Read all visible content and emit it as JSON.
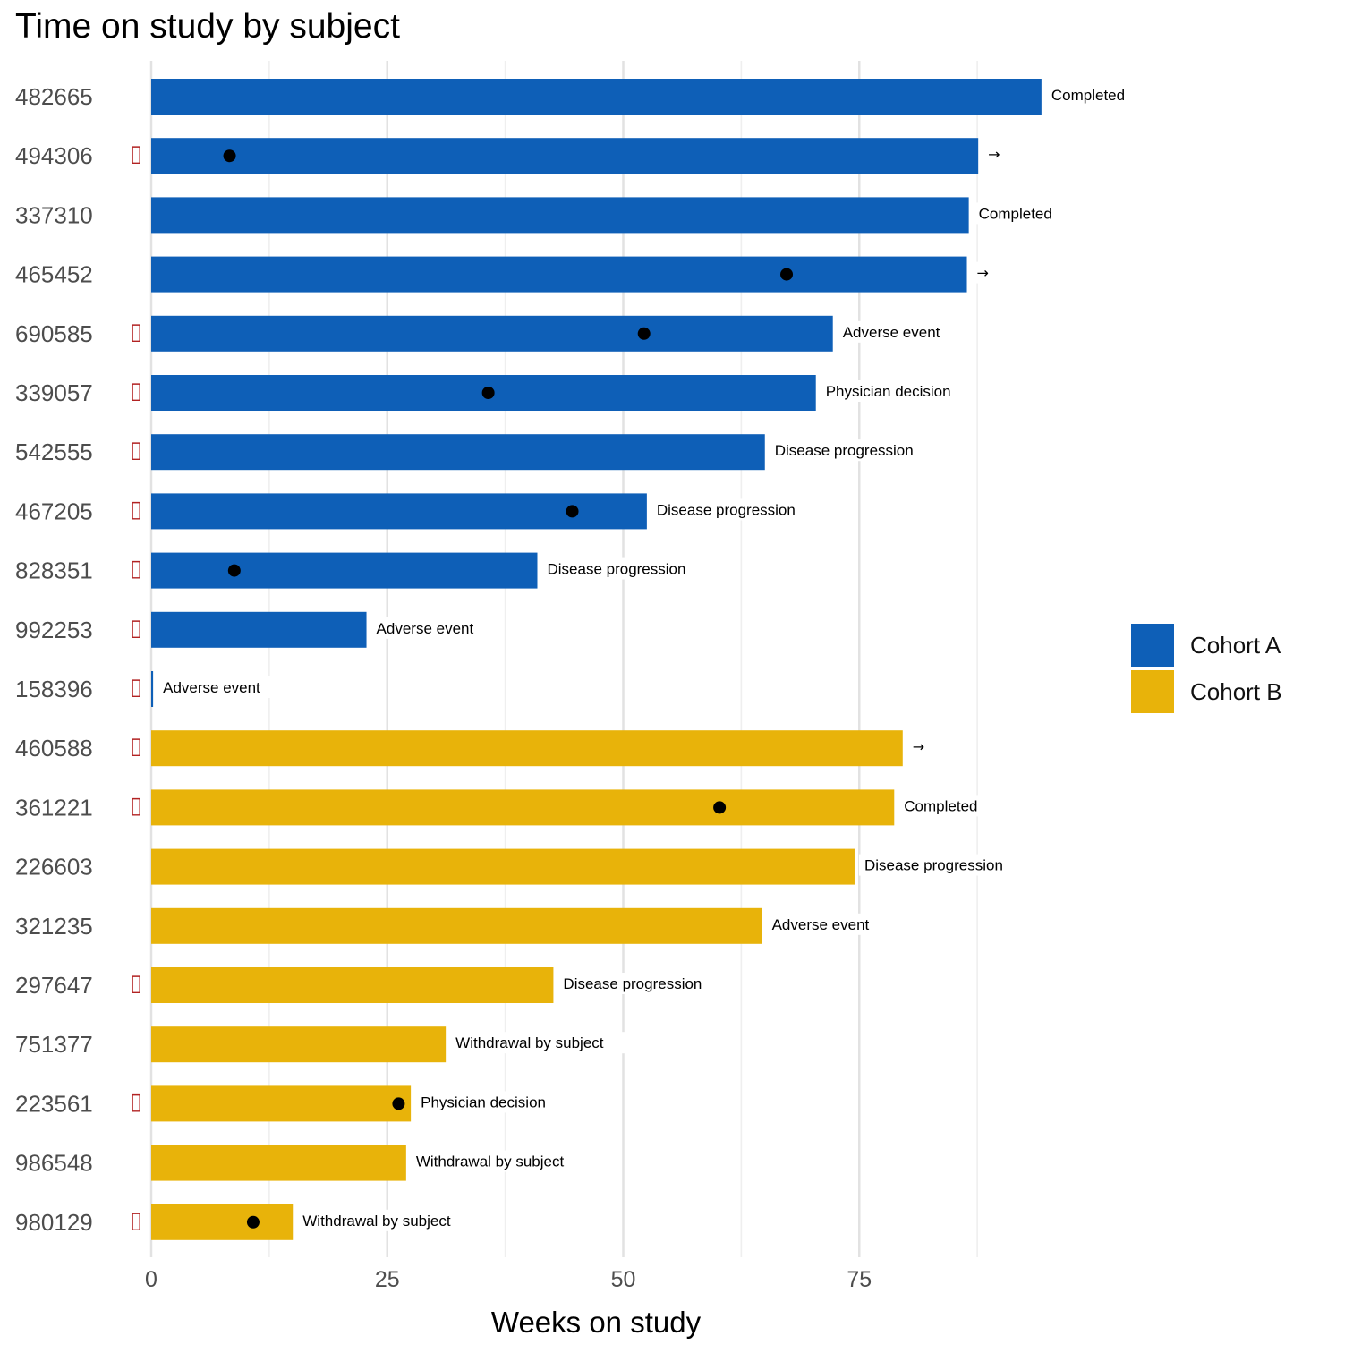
{
  "chart_data": {
    "type": "bar",
    "orientation": "horizontal",
    "title": "Time on study by subject",
    "xlabel": "Weeks on study",
    "ylabel": "",
    "xlim": [
      0,
      100
    ],
    "x_ticks": [
      0,
      25,
      50,
      75
    ],
    "grid": true,
    "legend_position": "right",
    "marker_glyph": "▯",
    "ongoing_glyph": "→",
    "series": [
      {
        "name": "Cohort A",
        "color": "#0E5FB7"
      },
      {
        "name": "Cohort B",
        "color": "#E8B30A"
      }
    ],
    "subjects": [
      {
        "id": "482665",
        "cohort": "Cohort A",
        "weeks": 94.3,
        "status": "Completed",
        "flag": false,
        "event_week": null
      },
      {
        "id": "494306",
        "cohort": "Cohort A",
        "weeks": 87.6,
        "status": "→",
        "flag": true,
        "event_week": 8.3
      },
      {
        "id": "337310",
        "cohort": "Cohort A",
        "weeks": 86.6,
        "status": "Completed",
        "flag": false,
        "event_week": null
      },
      {
        "id": "465452",
        "cohort": "Cohort A",
        "weeks": 86.4,
        "status": "→",
        "flag": false,
        "event_week": 67.3
      },
      {
        "id": "690585",
        "cohort": "Cohort A",
        "weeks": 72.2,
        "status": "Adverse event",
        "flag": true,
        "event_week": 52.2
      },
      {
        "id": "339057",
        "cohort": "Cohort A",
        "weeks": 70.4,
        "status": "Physician decision",
        "flag": true,
        "event_week": 35.7
      },
      {
        "id": "542555",
        "cohort": "Cohort A",
        "weeks": 65.0,
        "status": "Disease progression",
        "flag": true,
        "event_week": null
      },
      {
        "id": "467205",
        "cohort": "Cohort A",
        "weeks": 52.5,
        "status": "Disease progression",
        "flag": true,
        "event_week": 44.6
      },
      {
        "id": "828351",
        "cohort": "Cohort A",
        "weeks": 40.9,
        "status": "Disease progression",
        "flag": true,
        "event_week": 8.8
      },
      {
        "id": "992253",
        "cohort": "Cohort A",
        "weeks": 22.8,
        "status": "Adverse event",
        "flag": true,
        "event_week": null
      },
      {
        "id": "158396",
        "cohort": "Cohort A",
        "weeks": 0.2,
        "status": "Adverse event",
        "flag": true,
        "event_week": null
      },
      {
        "id": "460588",
        "cohort": "Cohort B",
        "weeks": 79.6,
        "status": "→",
        "flag": true,
        "event_week": null
      },
      {
        "id": "361221",
        "cohort": "Cohort B",
        "weeks": 78.7,
        "status": "Completed",
        "flag": true,
        "event_week": 60.2
      },
      {
        "id": "226603",
        "cohort": "Cohort B",
        "weeks": 74.5,
        "status": "Disease progression",
        "flag": false,
        "event_week": null
      },
      {
        "id": "321235",
        "cohort": "Cohort B",
        "weeks": 64.7,
        "status": "Adverse event",
        "flag": false,
        "event_week": null
      },
      {
        "id": "297647",
        "cohort": "Cohort B",
        "weeks": 42.6,
        "status": "Disease progression",
        "flag": true,
        "event_week": null
      },
      {
        "id": "751377",
        "cohort": "Cohort B",
        "weeks": 31.2,
        "status": "Withdrawal by subject",
        "flag": false,
        "event_week": null
      },
      {
        "id": "223561",
        "cohort": "Cohort B",
        "weeks": 27.5,
        "status": "Physician decision",
        "flag": true,
        "event_week": 26.2
      },
      {
        "id": "986548",
        "cohort": "Cohort B",
        "weeks": 27.0,
        "status": "Withdrawal by subject",
        "flag": false,
        "event_week": null
      },
      {
        "id": "980129",
        "cohort": "Cohort B",
        "weeks": 15.0,
        "status": "Withdrawal by subject",
        "flag": true,
        "event_week": 10.8
      }
    ]
  }
}
